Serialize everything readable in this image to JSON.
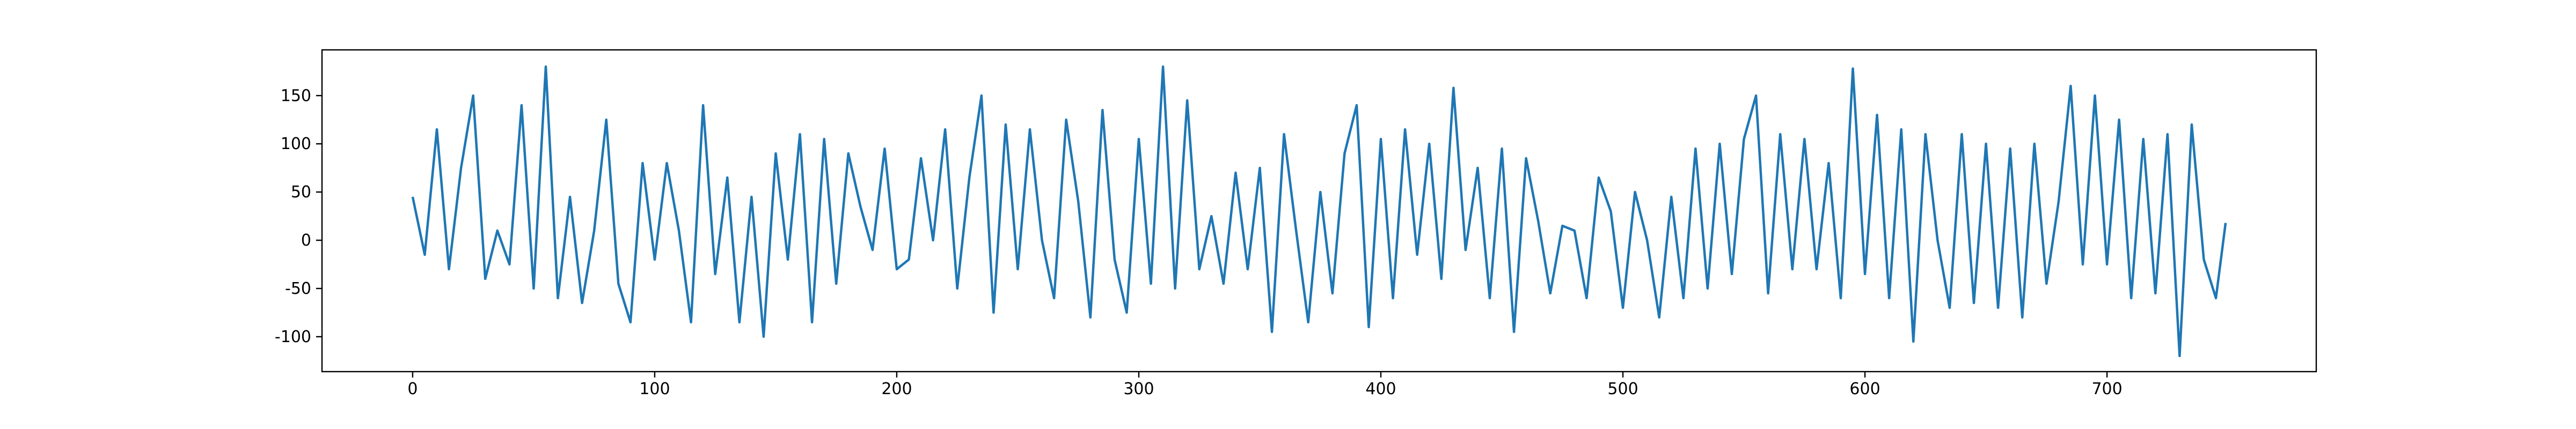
{
  "chart_data": {
    "type": "line",
    "x": [
      0,
      5,
      10,
      15,
      20,
      25,
      30,
      35,
      40,
      45,
      50,
      55,
      60,
      65,
      70,
      75,
      80,
      85,
      90,
      95,
      100,
      105,
      110,
      115,
      120,
      125,
      130,
      135,
      140,
      145,
      150,
      155,
      160,
      165,
      170,
      175,
      180,
      185,
      190,
      195,
      200,
      205,
      210,
      215,
      220,
      225,
      230,
      235,
      240,
      245,
      250,
      255,
      260,
      265,
      270,
      275,
      280,
      285,
      290,
      295,
      300,
      305,
      310,
      315,
      320,
      325,
      330,
      335,
      340,
      345,
      350,
      355,
      360,
      365,
      370,
      375,
      380,
      385,
      390,
      395,
      400,
      405,
      410,
      415,
      420,
      425,
      430,
      435,
      440,
      445,
      450,
      455,
      460,
      465,
      470,
      475,
      480,
      485,
      490,
      495,
      500,
      505,
      510,
      515,
      520,
      525,
      530,
      535,
      540,
      545,
      550,
      555,
      560,
      565,
      570,
      575,
      580,
      585,
      590,
      595,
      600,
      605,
      610,
      615,
      620,
      625,
      630,
      635,
      640,
      645,
      650,
      655,
      660,
      665,
      670,
      675,
      680,
      685,
      690,
      695,
      700,
      705,
      710,
      715,
      720,
      725,
      730,
      735,
      740,
      745,
      749
    ],
    "series": [
      {
        "color": "#1f77b4",
        "values": [
          45,
          -15,
          115,
          -30,
          75,
          150,
          -40,
          10,
          -25,
          140,
          -50,
          180,
          -60,
          45,
          -65,
          10,
          125,
          -45,
          -85,
          80,
          -20,
          80,
          10,
          -85,
          140,
          -35,
          65,
          -85,
          45,
          -100,
          90,
          -20,
          110,
          -85,
          105,
          -45,
          90,
          35,
          -10,
          95,
          -30,
          -20,
          85,
          0,
          115,
          -50,
          65,
          150,
          -75,
          120,
          -30,
          115,
          0,
          -60,
          125,
          40,
          -80,
          135,
          -20,
          -75,
          105,
          -45,
          180,
          -50,
          145,
          -30,
          25,
          -45,
          70,
          -30,
          75,
          -95,
          110,
          10,
          -85,
          50,
          -55,
          90,
          140,
          -90,
          105,
          -60,
          115,
          -15,
          100,
          -40,
          158,
          -10,
          75,
          -60,
          95,
          -95,
          85,
          20,
          -55,
          15,
          10,
          -60,
          65,
          30,
          -70,
          50,
          0,
          -80,
          45,
          -60,
          95,
          -50,
          100,
          -35,
          105,
          150,
          -55,
          110,
          -30,
          105,
          -30,
          80,
          -60,
          178,
          -35,
          130,
          -60,
          115,
          -105,
          110,
          0,
          -70,
          110,
          -65,
          100,
          -70,
          95,
          -80,
          100,
          -45,
          40,
          160,
          -25,
          150,
          -25,
          125,
          -60,
          105,
          -55,
          110,
          -120,
          120,
          -20,
          -60,
          18
        ]
      }
    ],
    "xlim": [
      -37.45,
      786.45
    ],
    "ylim": [
      -136.2,
      197.4
    ],
    "xticks": [
      0,
      100,
      200,
      300,
      400,
      500,
      600,
      700
    ],
    "yticks": [
      -100,
      -50,
      0,
      50,
      100,
      150
    ]
  }
}
